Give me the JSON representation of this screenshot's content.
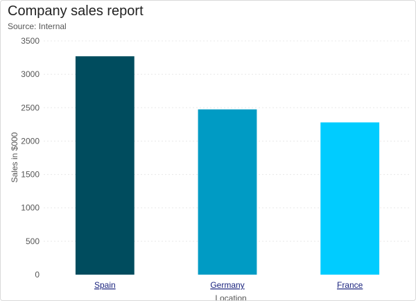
{
  "colors": {
    "bars": [
      "#004c5e",
      "#009bc4",
      "#00ccff"
    ],
    "grid": "#e8e8e8",
    "category_label": "#1a237e"
  },
  "chart_data": {
    "type": "bar",
    "title": "Company sales report",
    "subtitle": "Source: Internal",
    "categories": [
      "Spain",
      "Germany",
      "France"
    ],
    "values": [
      3270,
      2475,
      2280
    ],
    "xlabel": "Location",
    "ylabel": "Sales in $000",
    "ylim": [
      0,
      3500
    ],
    "yticks": [
      0,
      500,
      1000,
      1500,
      2000,
      2500,
      3000,
      3500
    ],
    "grid": "dotted horizontal",
    "legend": "none"
  }
}
